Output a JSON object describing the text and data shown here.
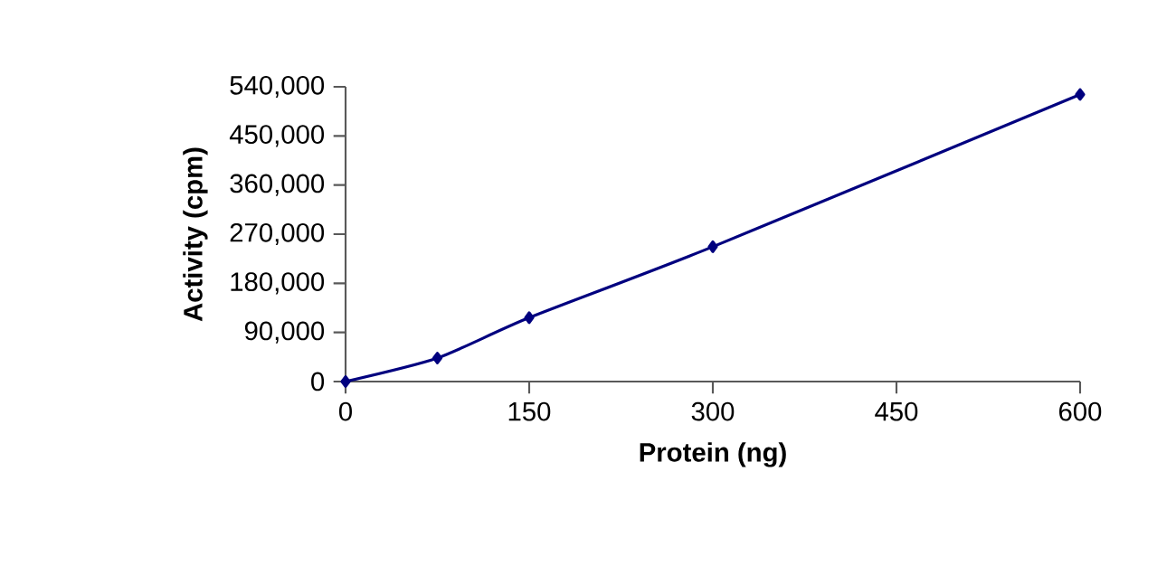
{
  "chart_data": {
    "type": "line",
    "xlabel": "Protein (ng)",
    "ylabel": "Activity (cpm)",
    "x": [
      0,
      75,
      150,
      300,
      600
    ],
    "series": [
      {
        "color": "#00007f",
        "values": [
          0,
          43000,
          117000,
          247000,
          526000
        ]
      }
    ],
    "xlim": [
      0,
      600
    ],
    "xticks": [
      0,
      150,
      300,
      450,
      600
    ],
    "ylim": [
      0,
      540000
    ],
    "yticks": [
      {
        "value": 0,
        "label": "0"
      },
      {
        "value": 90000,
        "label": "90,000"
      },
      {
        "value": 180000,
        "label": "180,000"
      },
      {
        "value": 270000,
        "label": "270,000"
      },
      {
        "value": 360000,
        "label": "360,000"
      },
      {
        "value": 450000,
        "label": "450,000"
      },
      {
        "value": 540000,
        "label": "540,000"
      }
    ],
    "grid": false,
    "marker": "diamond",
    "line_style": "solid"
  }
}
